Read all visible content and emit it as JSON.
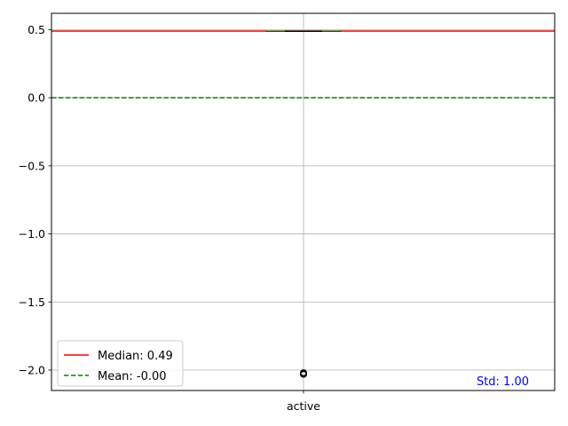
{
  "chart_data": {
    "type": "box",
    "categories": [
      "active"
    ],
    "box": {
      "q1": 0.49,
      "median": 0.49,
      "q3": 0.49,
      "whisker_low": 0.49,
      "whisker_high": 0.49,
      "outliers": [
        -2.03,
        -2.03,
        -2.02
      ]
    },
    "reference_lines": [
      {
        "label": "Median: 0.49",
        "value": 0.49,
        "color": "#ff0000",
        "style": "solid"
      },
      {
        "label": "Mean: -0.00",
        "value": 0.0,
        "color": "#008000",
        "style": "dashed"
      }
    ],
    "annotation": {
      "text": "Std: 1.00",
      "color": "#0000ff"
    },
    "ylim": [
      -2.15,
      0.62
    ],
    "yticks": [
      {
        "value": 0.5,
        "label": "0.5"
      },
      {
        "value": 0.0,
        "label": "0.0"
      },
      {
        "value": -0.5,
        "label": "−0.5"
      },
      {
        "value": -1.0,
        "label": "−1.0"
      },
      {
        "value": -1.5,
        "label": "−1.5"
      },
      {
        "value": -2.0,
        "label": "−2.0"
      }
    ],
    "grid": true,
    "legend_position": "lower-left",
    "box_color": "#2ca02c",
    "title": "",
    "xlabel": "",
    "ylabel": ""
  }
}
